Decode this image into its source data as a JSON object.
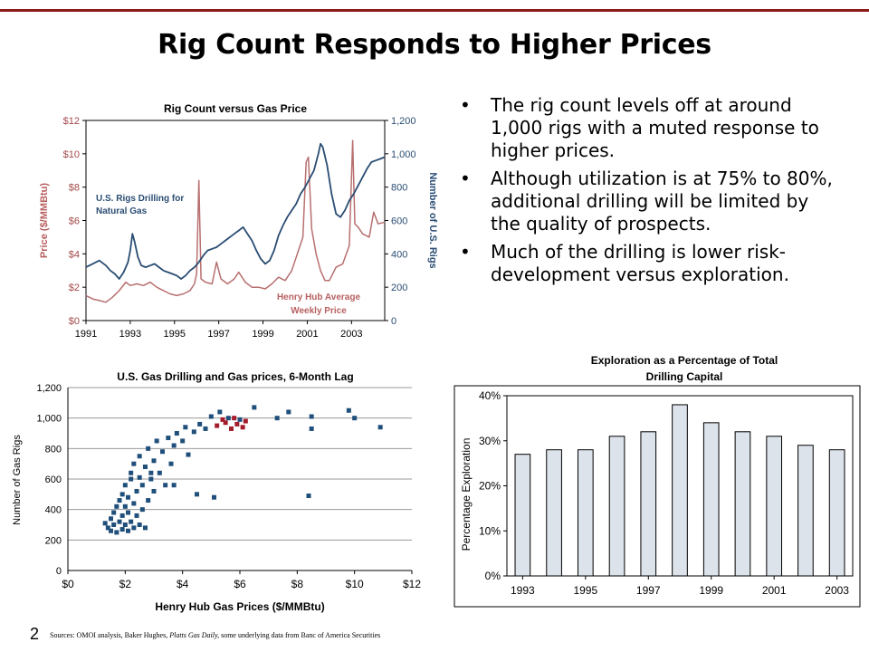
{
  "title": "Rig Count Responds to Higher Prices",
  "bullets": [
    "The rig count levels off at around 1,000 rigs with a muted response to higher prices.",
    "Although utilization is at 75% to 80%, additional drilling will be limited by the quality of prospects.",
    "Much of the drilling is lower risk-development versus exploration."
  ],
  "page_number": "2",
  "sources": {
    "prefix": "Sources: OMOI analysis, Baker Hughes, ",
    "italic": "Platts Gas Daily,",
    "suffix": " some underlying data from Banc of America Securities"
  },
  "colors": {
    "rig": "#2a4d73",
    "price": "#b86f6f",
    "scatter": "#1f4f7a",
    "scatter_highlight": "#a31c2c",
    "bar_fill": "#dde3ea",
    "accent_line": "#8b1a1a"
  },
  "chart_data": [
    {
      "type": "line",
      "title": "Rig Count versus Gas Price",
      "ylabel": "Price ($/MMBtu)",
      "y2label": "Number of U.S. Rigs",
      "x_ticks": [
        "1991",
        "1993",
        "1995",
        "1997",
        "1999",
        "2001",
        "2003"
      ],
      "y_ticks": [
        "$0",
        "$2",
        "$4",
        "$6",
        "$8",
        "$10",
        "$12"
      ],
      "y2_ticks": [
        "0",
        "200",
        "400",
        "600",
        "800",
        "1,000",
        "1,200"
      ],
      "ylim": [
        0,
        12
      ],
      "y2lim": [
        0,
        1200
      ],
      "xlim": [
        1991,
        2004.5
      ],
      "annotations": [
        "U.S. Rigs Drilling for Natural Gas",
        "Henry Hub Average Weekly Price"
      ],
      "series": [
        {
          "name": "U.S. Rigs Drilling for Natural Gas",
          "axis": "right",
          "x": [
            1991,
            1991.3,
            1991.6,
            1991.9,
            1992.1,
            1992.3,
            1992.5,
            1992.7,
            1992.9,
            1993.0,
            1993.1,
            1993.2,
            1993.35,
            1993.5,
            1993.7,
            1993.9,
            1994.1,
            1994.3,
            1994.5,
            1994.7,
            1994.9,
            1995.1,
            1995.3,
            1995.5,
            1995.7,
            1995.9,
            1996.1,
            1996.3,
            1996.5,
            1996.7,
            1996.9,
            1997.1,
            1997.3,
            1997.5,
            1997.7,
            1997.9,
            1998.1,
            1998.3,
            1998.5,
            1998.7,
            1998.9,
            1999.1,
            1999.3,
            1999.5,
            1999.7,
            1999.9,
            2000.1,
            2000.3,
            2000.5,
            2000.7,
            2000.9,
            2001.1,
            2001.3,
            2001.5,
            2001.6,
            2001.7,
            2001.9,
            2002.1,
            2002.3,
            2002.5,
            2002.7,
            2002.9,
            2003.1,
            2003.3,
            2003.5,
            2003.7,
            2003.9,
            2004.1,
            2004.3,
            2004.5
          ],
          "values": [
            320,
            340,
            360,
            330,
            300,
            280,
            250,
            290,
            350,
            420,
            520,
            470,
            380,
            330,
            320,
            330,
            340,
            320,
            300,
            290,
            280,
            270,
            250,
            270,
            300,
            320,
            350,
            390,
            420,
            430,
            440,
            460,
            480,
            500,
            520,
            540,
            560,
            520,
            480,
            420,
            370,
            340,
            360,
            420,
            510,
            570,
            620,
            660,
            700,
            760,
            800,
            850,
            900,
            1000,
            1060,
            1040,
            930,
            760,
            640,
            620,
            660,
            720,
            760,
            810,
            860,
            910,
            950,
            960,
            970,
            980
          ]
        },
        {
          "name": "Henry Hub Average Weekly Price",
          "axis": "left",
          "x": [
            1991,
            1991.3,
            1991.6,
            1991.9,
            1992.2,
            1992.5,
            1992.8,
            1993.0,
            1993.3,
            1993.6,
            1993.9,
            1994.2,
            1994.5,
            1994.8,
            1995.1,
            1995.4,
            1995.7,
            1995.9,
            1996.0,
            1996.1,
            1996.2,
            1996.4,
            1996.7,
            1996.9,
            1997.1,
            1997.4,
            1997.7,
            1997.9,
            1998.2,
            1998.5,
            1998.8,
            1999.1,
            1999.4,
            1999.7,
            2000.0,
            2000.3,
            2000.6,
            2000.8,
            2000.95,
            2001.05,
            2001.2,
            2001.4,
            2001.6,
            2001.8,
            2002.0,
            2002.3,
            2002.6,
            2002.9,
            2003.05,
            2003.15,
            2003.3,
            2003.5,
            2003.8,
            2004.0,
            2004.2,
            2004.5
          ],
          "values": [
            1.5,
            1.3,
            1.2,
            1.1,
            1.4,
            1.8,
            2.3,
            2.1,
            2.2,
            2.1,
            2.3,
            2.0,
            1.8,
            1.6,
            1.5,
            1.6,
            1.8,
            2.2,
            2.8,
            8.4,
            2.5,
            2.3,
            2.2,
            3.5,
            2.5,
            2.2,
            2.5,
            2.9,
            2.3,
            2.0,
            2.0,
            1.9,
            2.2,
            2.6,
            2.4,
            3.0,
            4.2,
            5.0,
            9.5,
            9.8,
            5.5,
            4.0,
            3.0,
            2.4,
            2.4,
            3.2,
            3.4,
            4.5,
            10.8,
            5.8,
            5.6,
            5.2,
            5.0,
            6.5,
            5.8,
            5.9
          ]
        }
      ]
    },
    {
      "type": "scatter",
      "title": "U.S. Gas Drilling and Gas prices, 6-Month Lag",
      "xlabel": "Henry Hub Gas Prices ($/MMBtu)",
      "ylabel": "Number of Gas Rigs",
      "x_ticks": [
        "$0",
        "$2",
        "$4",
        "$6",
        "$8",
        "$10",
        "$12"
      ],
      "y_ticks": [
        "0",
        "200",
        "400",
        "600",
        "800",
        "1,000",
        "1,200"
      ],
      "xlim": [
        0,
        12
      ],
      "ylim": [
        0,
        1200
      ],
      "grid": "horizontal",
      "series": [
        {
          "name": "all",
          "points": [
            [
              1.3,
              310
            ],
            [
              1.4,
              280
            ],
            [
              1.5,
              340
            ],
            [
              1.5,
              260
            ],
            [
              1.6,
              300
            ],
            [
              1.6,
              380
            ],
            [
              1.7,
              250
            ],
            [
              1.7,
              420
            ],
            [
              1.8,
              320
            ],
            [
              1.8,
              460
            ],
            [
              1.9,
              270
            ],
            [
              1.9,
              360
            ],
            [
              1.9,
              500
            ],
            [
              2.0,
              300
            ],
            [
              2.0,
              420
            ],
            [
              2.0,
              560
            ],
            [
              2.1,
              260
            ],
            [
              2.1,
              380
            ],
            [
              2.1,
              480
            ],
            [
              2.2,
              320
            ],
            [
              2.2,
              600
            ],
            [
              2.2,
              640
            ],
            [
              2.3,
              280
            ],
            [
              2.3,
              440
            ],
            [
              2.3,
              700
            ],
            [
              2.4,
              360
            ],
            [
              2.4,
              520
            ],
            [
              2.5,
              300
            ],
            [
              2.5,
              610
            ],
            [
              2.5,
              750
            ],
            [
              2.6,
              400
            ],
            [
              2.6,
              560
            ],
            [
              2.7,
              280
            ],
            [
              2.7,
              680
            ],
            [
              2.8,
              460
            ],
            [
              2.8,
              800
            ],
            [
              2.9,
              600
            ],
            [
              3.0,
              720
            ],
            [
              3.0,
              520
            ],
            [
              3.1,
              850
            ],
            [
              3.2,
              640
            ],
            [
              3.3,
              780
            ],
            [
              3.4,
              560
            ],
            [
              3.5,
              870
            ],
            [
              3.6,
              700
            ],
            [
              3.7,
              820
            ],
            [
              3.8,
              900
            ],
            [
              4.0,
              850
            ],
            [
              4.1,
              940
            ],
            [
              4.2,
              760
            ],
            [
              4.4,
              910
            ],
            [
              4.6,
              960
            ],
            [
              4.8,
              930
            ],
            [
              5.0,
              1010
            ],
            [
              5.1,
              480
            ],
            [
              5.3,
              1040
            ],
            [
              5.6,
              1000
            ],
            [
              6.0,
              990
            ],
            [
              6.5,
              1070
            ],
            [
              7.3,
              1000
            ],
            [
              7.7,
              1040
            ],
            [
              8.4,
              490
            ],
            [
              8.5,
              930
            ],
            [
              8.5,
              1010
            ],
            [
              9.8,
              1050
            ],
            [
              10.0,
              1000
            ],
            [
              10.9,
              940
            ],
            [
              3.7,
              560
            ],
            [
              2.9,
              640
            ],
            [
              4.5,
              500
            ]
          ]
        },
        {
          "name": "recent",
          "points": [
            [
              5.2,
              950
            ],
            [
              5.5,
              970
            ],
            [
              5.7,
              930
            ],
            [
              5.9,
              960
            ],
            [
              6.1,
              940
            ],
            [
              5.4,
              990
            ],
            [
              5.8,
              1000
            ],
            [
              6.2,
              980
            ]
          ]
        }
      ]
    },
    {
      "type": "bar",
      "title": "Exploration as a Percentage of Total Drilling Capital",
      "ylabel": "Percentage Exploration",
      "categories": [
        "1993",
        "1994",
        "1995",
        "1996",
        "1997",
        "1998",
        "1999",
        "2000",
        "2001",
        "2002",
        "2003"
      ],
      "x_tick_labels": [
        "1993",
        "1995",
        "1997",
        "1999",
        "2001",
        "2003"
      ],
      "y_ticks": [
        "0%",
        "10%",
        "20%",
        "30%",
        "40%"
      ],
      "values": [
        27,
        28,
        28,
        31,
        32,
        38,
        34,
        32,
        31,
        29,
        28
      ],
      "ylim": [
        0,
        40
      ]
    }
  ]
}
